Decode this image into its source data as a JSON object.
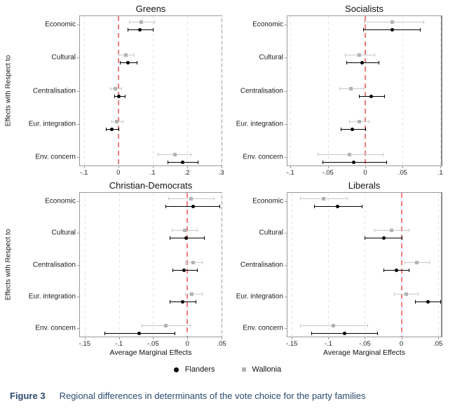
{
  "figure": {
    "ylabel": "Effects with Respect to",
    "xlabel": "Average Marginal Effects",
    "zero_line_color": "#ee7e7e",
    "frame_color": "#9a9a9a",
    "legend": [
      {
        "label": "Flanders",
        "marker": "circle",
        "color": "#000000"
      },
      {
        "label": "Wallonia",
        "marker": "square",
        "color": "#b4b4b4"
      }
    ]
  },
  "caption": {
    "label": "Figure 3",
    "text": "Regional differences in determinants of the vote choice for the party families",
    "color": "#2b4a6f"
  },
  "chart_data": [
    {
      "type": "scatter",
      "title": "Greens",
      "categories": [
        "Economic",
        "Cultural",
        "Centralisation",
        "Eur. integration",
        "Env. concern"
      ],
      "xlim": [
        -0.112,
        0.305
      ],
      "xticks": {
        "values": [
          -0.1,
          0,
          0.1,
          0.2,
          0.3
        ],
        "labels": [
          "-.1",
          "0",
          ".1",
          ".2",
          ".3"
        ]
      },
      "series": [
        {
          "name": "Wallonia",
          "marker": "square",
          "color": "#b4b4b4",
          "ci_color": "#c9c9c9",
          "points": [
            {
              "est": 0.067,
              "lo": 0.031,
              "hi": 0.104
            },
            {
              "est": 0.022,
              "lo": 0.0,
              "hi": 0.045
            },
            {
              "est": -0.008,
              "lo": -0.024,
              "hi": 0.008
            },
            {
              "est": -0.004,
              "lo": -0.02,
              "hi": 0.012
            },
            {
              "est": 0.164,
              "lo": 0.115,
              "hi": 0.21
            }
          ]
        },
        {
          "name": "Flanders",
          "marker": "circle",
          "color": "#000000",
          "ci_color": "#000000",
          "points": [
            {
              "est": 0.063,
              "lo": 0.027,
              "hi": 0.1
            },
            {
              "est": 0.029,
              "lo": 0.004,
              "hi": 0.053
            },
            {
              "est": 0.002,
              "lo": -0.012,
              "hi": 0.018
            },
            {
              "est": -0.018,
              "lo": -0.037,
              "hi": 0.0
            },
            {
              "est": 0.187,
              "lo": 0.143,
              "hi": 0.232
            }
          ]
        }
      ]
    },
    {
      "type": "scatter",
      "title": "Socialists",
      "categories": [
        "Economic",
        "Cultural",
        "Centralisation",
        "Eur. integration",
        "Env. concern"
      ],
      "xlim": [
        -0.104,
        0.104
      ],
      "xticks": {
        "values": [
          -0.1,
          -0.05,
          0,
          0.05,
          0.1
        ],
        "labels": [
          "-.1",
          "-.05",
          "0",
          ".05",
          ".1"
        ]
      },
      "series": [
        {
          "name": "Wallonia",
          "marker": "square",
          "color": "#b4b4b4",
          "ci_color": "#c9c9c9",
          "points": [
            {
              "est": 0.036,
              "lo": -0.002,
              "hi": 0.078
            },
            {
              "est": -0.008,
              "lo": -0.027,
              "hi": 0.012
            },
            {
              "est": -0.019,
              "lo": -0.035,
              "hi": -0.003
            },
            {
              "est": -0.008,
              "lo": -0.022,
              "hi": 0.005
            },
            {
              "est": -0.021,
              "lo": -0.064,
              "hi": 0.023
            }
          ]
        },
        {
          "name": "Flanders",
          "marker": "circle",
          "color": "#000000",
          "ci_color": "#000000",
          "points": [
            {
              "est": 0.036,
              "lo": -0.003,
              "hi": 0.073
            },
            {
              "est": -0.004,
              "lo": -0.025,
              "hi": 0.018
            },
            {
              "est": 0.008,
              "lo": -0.008,
              "hi": 0.025
            },
            {
              "est": -0.017,
              "lo": -0.033,
              "hi": 0.0
            },
            {
              "est": -0.015,
              "lo": -0.057,
              "hi": 0.028
            }
          ]
        }
      ]
    },
    {
      "type": "scatter",
      "title": "Christian-Democrats",
      "categories": [
        "Economic",
        "Cultural",
        "Centralisation",
        "Eur. integration",
        "Env. concern"
      ],
      "xlim": [
        -0.157,
        0.052
      ],
      "xticks": {
        "values": [
          -0.15,
          -0.1,
          -0.05,
          0,
          0.05
        ],
        "labels": [
          "-.15",
          "-.1",
          "-.05",
          "0",
          ".05"
        ]
      },
      "series": [
        {
          "name": "Wallonia",
          "marker": "square",
          "color": "#b4b4b4",
          "ci_color": "#c9c9c9",
          "points": [
            {
              "est": 0.005,
              "lo": -0.028,
              "hi": 0.039
            },
            {
              "est": -0.004,
              "lo": -0.023,
              "hi": 0.014
            },
            {
              "est": 0.008,
              "lo": -0.003,
              "hi": 0.021
            },
            {
              "est": 0.006,
              "lo": -0.003,
              "hi": 0.021
            },
            {
              "est": -0.032,
              "lo": -0.067,
              "hi": 0.004
            }
          ]
        },
        {
          "name": "Flanders",
          "marker": "circle",
          "color": "#000000",
          "ci_color": "#000000",
          "points": [
            {
              "est": 0.008,
              "lo": -0.032,
              "hi": 0.047
            },
            {
              "est": -0.002,
              "lo": -0.026,
              "hi": 0.024
            },
            {
              "est": -0.005,
              "lo": -0.022,
              "hi": 0.014
            },
            {
              "est": -0.007,
              "lo": -0.026,
              "hi": 0.012
            },
            {
              "est": -0.07,
              "lo": -0.121,
              "hi": -0.019
            }
          ]
        }
      ]
    },
    {
      "type": "scatter",
      "title": "Liberals",
      "categories": [
        "Economic",
        "Cultural",
        "Centralisation",
        "Eur. integration",
        "Env. concern"
      ],
      "xlim": [
        -0.156,
        0.057
      ],
      "xticks": {
        "values": [
          -0.15,
          -0.1,
          -0.05,
          0,
          0.05
        ],
        "labels": [
          "-.15",
          "-.1",
          "-.05",
          "0",
          ".05"
        ]
      },
      "series": [
        {
          "name": "Wallonia",
          "marker": "square",
          "color": "#b4b4b4",
          "ci_color": "#c9c9c9",
          "points": [
            {
              "est": -0.107,
              "lo": -0.139,
              "hi": -0.074
            },
            {
              "est": -0.014,
              "lo": -0.037,
              "hi": 0.01
            },
            {
              "est": 0.021,
              "lo": 0.004,
              "hi": 0.038
            },
            {
              "est": 0.007,
              "lo": -0.01,
              "hi": 0.022
            },
            {
              "est": -0.093,
              "lo": -0.139,
              "hi": -0.047
            }
          ]
        },
        {
          "name": "Flanders",
          "marker": "circle",
          "color": "#000000",
          "ci_color": "#000000",
          "points": [
            {
              "est": -0.087,
              "lo": -0.12,
              "hi": -0.054
            },
            {
              "est": -0.024,
              "lo": -0.05,
              "hi": 0.0
            },
            {
              "est": -0.007,
              "lo": -0.025,
              "hi": 0.01
            },
            {
              "est": 0.036,
              "lo": 0.019,
              "hi": 0.053
            },
            {
              "est": -0.078,
              "lo": -0.123,
              "hi": -0.033
            }
          ]
        }
      ]
    }
  ]
}
